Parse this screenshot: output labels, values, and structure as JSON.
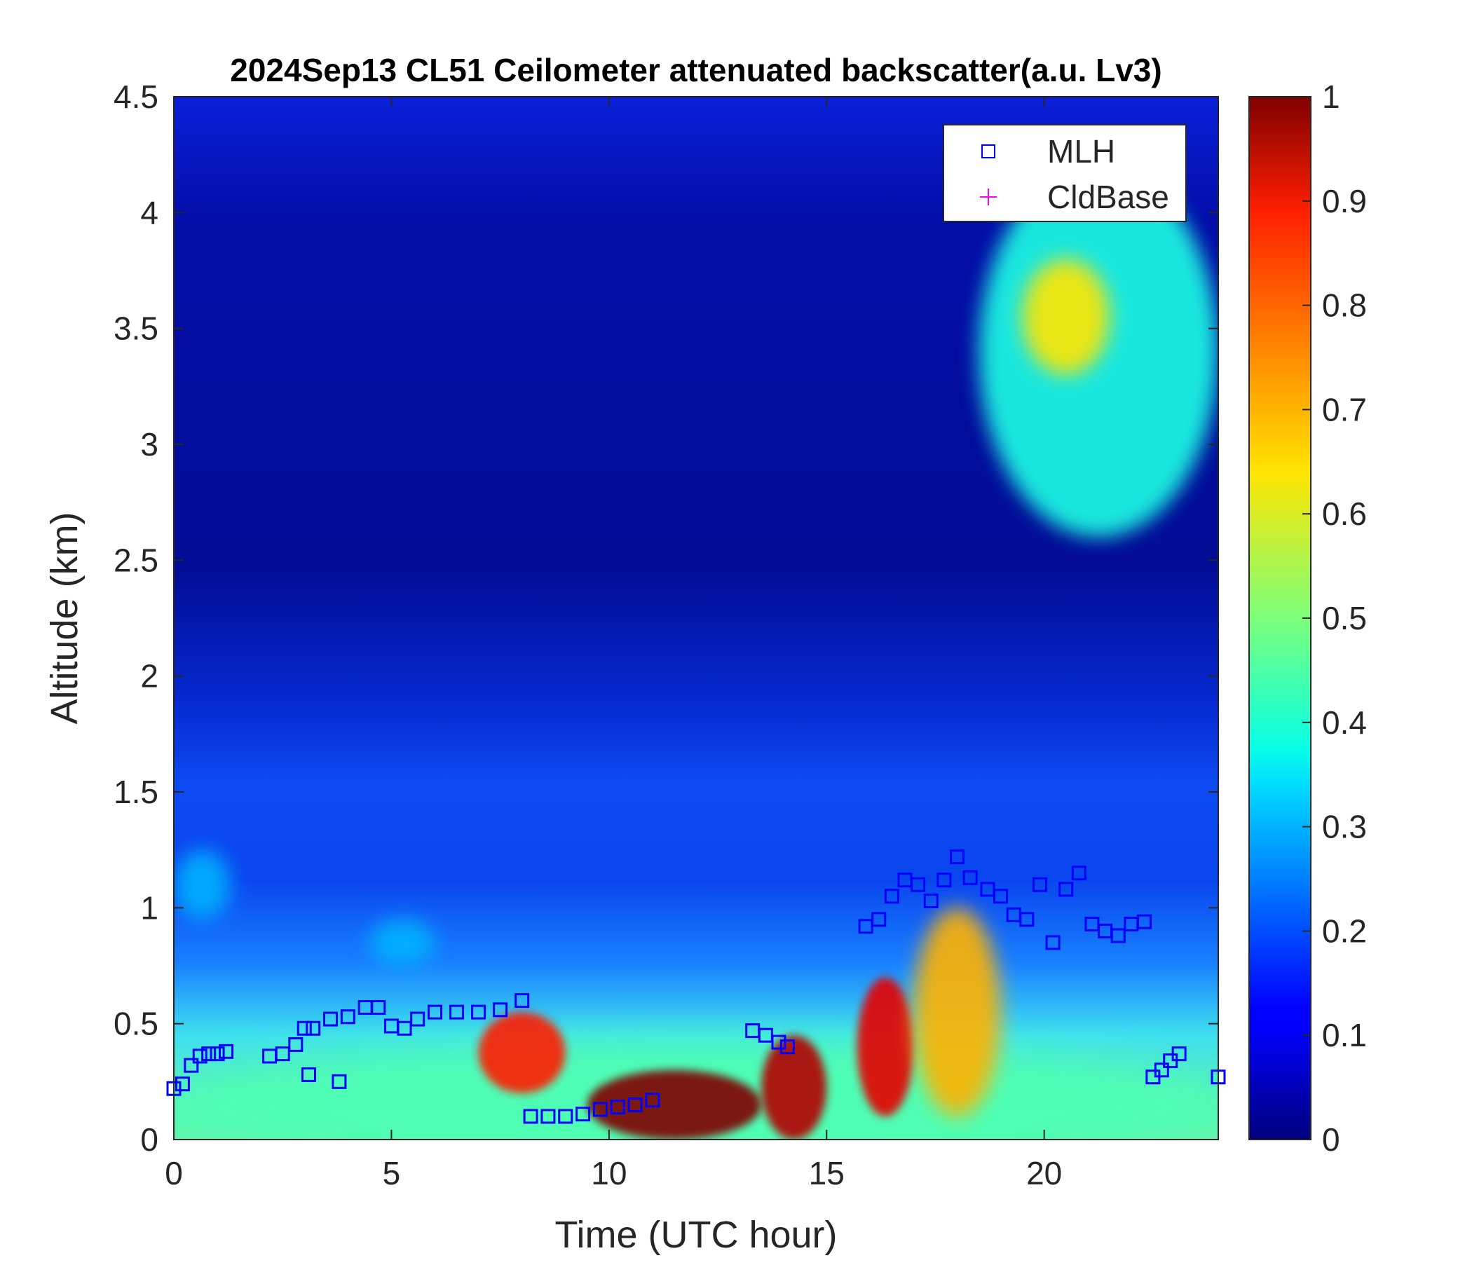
{
  "chart_data": {
    "type": "heatmap",
    "title": "2024Sep13 CL51 Ceilometer attenuated backscatter(a.u. Lv3)",
    "xlabel": "Time (UTC hour)",
    "ylabel": "Altitude (km)",
    "xlim": [
      0,
      24
    ],
    "ylim": [
      0,
      4.5
    ],
    "x_ticks": [
      0,
      5,
      10,
      15,
      20
    ],
    "x_tick_labels": [
      "0",
      "5",
      "10",
      "15",
      "20"
    ],
    "y_ticks": [
      0,
      0.5,
      1,
      1.5,
      2,
      2.5,
      3,
      3.5,
      4,
      4.5
    ],
    "y_tick_labels": [
      "0",
      "0.5",
      "1",
      "1.5",
      "2",
      "2.5",
      "3",
      "3.5",
      "4",
      "4.5"
    ],
    "colorbar": {
      "colormap": "jet",
      "range": [
        0,
        1
      ],
      "ticks": [
        0,
        0.1,
        0.2,
        0.3,
        0.4,
        0.5,
        0.6,
        0.7,
        0.8,
        0.9,
        1
      ],
      "tick_labels": [
        "0",
        "0.1",
        "0.2",
        "0.3",
        "0.4",
        "0.5",
        "0.6",
        "0.7",
        "0.8",
        "0.9",
        "1"
      ]
    },
    "legend": {
      "position": "top-right",
      "entries": [
        {
          "label": "MLH",
          "marker": "square",
          "color": "#0000ff"
        },
        {
          "label": "CldBase",
          "marker": "plus",
          "color": "#ff00ff"
        }
      ]
    },
    "grid": false,
    "field": {
      "description_units": "a.u.",
      "x_samples": [
        0,
        1,
        2,
        3,
        4,
        5,
        6,
        7,
        8,
        9,
        10,
        11,
        12,
        13,
        14,
        15,
        16,
        17,
        18,
        19,
        20,
        21,
        22,
        23,
        24
      ],
      "features": [
        {
          "kind": "surface_aerosol_layer",
          "x_range": [
            0,
            24
          ],
          "y_range": [
            0,
            0.4
          ],
          "value": 0.45
        },
        {
          "kind": "residual_layer",
          "x_range": [
            0,
            1.3
          ],
          "y_range": [
            0.95,
            1.25
          ],
          "value": 0.3
        },
        {
          "kind": "elevated_aerosol",
          "x_range": [
            4.5,
            6
          ],
          "y_range": [
            0.75,
            0.95
          ],
          "value": 0.3
        },
        {
          "kind": "high_backscatter",
          "x_range": [
            7,
            9
          ],
          "y_range": [
            0.2,
            0.55
          ],
          "value": 0.85
        },
        {
          "kind": "high_backscatter",
          "x_range": [
            9.5,
            13.5
          ],
          "y_range": [
            0,
            0.3
          ],
          "value": 1.0
        },
        {
          "kind": "high_backscatter",
          "x_range": [
            13.5,
            15
          ],
          "y_range": [
            0,
            0.45
          ],
          "value": 0.95
        },
        {
          "kind": "high_backscatter",
          "x_range": [
            15.7,
            17
          ],
          "y_range": [
            0.1,
            0.7
          ],
          "value": 0.9
        },
        {
          "kind": "high_backscatter",
          "x_range": [
            17,
            19
          ],
          "y_range": [
            0.1,
            1.0
          ],
          "value": 0.7
        },
        {
          "kind": "elevated_aerosol",
          "x_range": [
            18.5,
            24
          ],
          "y_range": [
            2.6,
            4.2
          ],
          "value": 0.4
        },
        {
          "kind": "elevated_aerosol",
          "x_range": [
            19.5,
            21.5
          ],
          "y_range": [
            3.3,
            3.8
          ],
          "value": 0.65
        }
      ]
    },
    "series": [
      {
        "name": "MLH",
        "type": "scatter",
        "marker": "square",
        "color": "#0000ff",
        "x": [
          0.0,
          0.2,
          0.4,
          0.6,
          0.8,
          1.0,
          1.2,
          2.2,
          2.5,
          2.8,
          3.0,
          3.2,
          3.6,
          4.0,
          4.4,
          4.7,
          5.0,
          5.3,
          5.6,
          6.0,
          6.5,
          7.0,
          7.5,
          8.0,
          8.2,
          8.6,
          9.0,
          9.4,
          9.8,
          10.2,
          10.6,
          11.0,
          13.3,
          13.6,
          13.9,
          14.1,
          15.9,
          16.2,
          16.5,
          16.8,
          17.1,
          17.4,
          17.7,
          18.0,
          18.3,
          18.7,
          19.0,
          19.3,
          19.6,
          19.9,
          20.2,
          20.5,
          20.8,
          21.1,
          21.4,
          21.7,
          22.0,
          22.3,
          22.5,
          22.7,
          22.9,
          23.1,
          24.0,
          3.1,
          3.8
        ],
        "y": [
          0.22,
          0.24,
          0.32,
          0.36,
          0.37,
          0.37,
          0.38,
          0.36,
          0.37,
          0.41,
          0.48,
          0.48,
          0.52,
          0.53,
          0.57,
          0.57,
          0.49,
          0.48,
          0.52,
          0.55,
          0.55,
          0.55,
          0.56,
          0.6,
          0.1,
          0.1,
          0.1,
          0.11,
          0.13,
          0.14,
          0.15,
          0.17,
          0.47,
          0.45,
          0.42,
          0.4,
          0.92,
          0.95,
          1.05,
          1.12,
          1.1,
          1.03,
          1.12,
          1.22,
          1.13,
          1.08,
          1.05,
          0.97,
          0.95,
          1.1,
          0.85,
          1.08,
          1.15,
          0.93,
          0.9,
          0.88,
          0.93,
          0.94,
          0.27,
          0.3,
          0.34,
          0.37,
          0.27,
          0.28,
          0.25
        ]
      },
      {
        "name": "CldBase",
        "type": "scatter",
        "marker": "plus",
        "color": "#ff00ff",
        "x": [],
        "y": []
      }
    ]
  }
}
